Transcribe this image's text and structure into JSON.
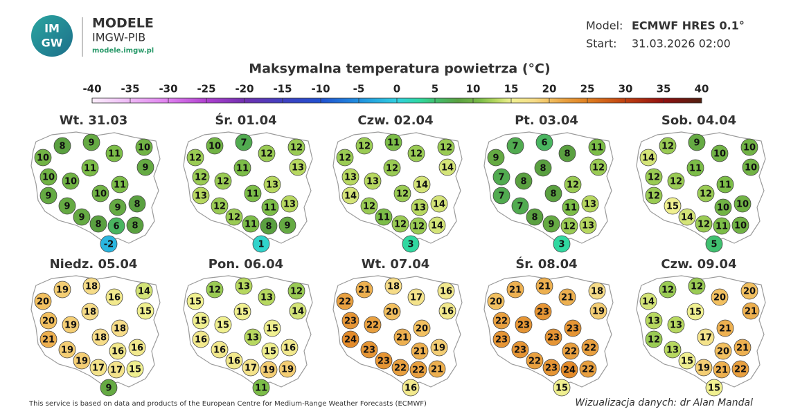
{
  "header": {
    "logo": [
      "IM",
      "GW"
    ],
    "brand": "MODELE",
    "org": "IMGW-PIB",
    "url": "modele.imgw.pl",
    "model_label": "Model:",
    "model": "ECMWF HRES 0.1°",
    "start_label": "Start:",
    "start": "31.03.2026 02:00"
  },
  "title": "Maksymalna temperatura powietrza (°C)",
  "colorbar_ticks": [
    -40,
    -35,
    -30,
    -25,
    -20,
    -15,
    -10,
    -5,
    0,
    5,
    10,
    15,
    20,
    25,
    30,
    35,
    40
  ],
  "maps": [
    {
      "label": "Wt. 31.03",
      "values": [
        8,
        9,
        10,
        11,
        10,
        11,
        9,
        10,
        10,
        11,
        10,
        9,
        9,
        8,
        9,
        9,
        8,
        6,
        8,
        -2
      ]
    },
    {
      "label": "Śr. 01.04",
      "values": [
        10,
        7,
        12,
        12,
        12,
        11,
        13,
        12,
        12,
        13,
        11,
        13,
        12,
        13,
        11,
        12,
        11,
        8,
        9,
        1
      ]
    },
    {
      "label": "Czw. 02.04",
      "values": [
        12,
        11,
        12,
        12,
        12,
        12,
        14,
        13,
        13,
        14,
        12,
        14,
        12,
        14,
        13,
        11,
        12,
        12,
        14,
        3
      ]
    },
    {
      "label": "Pt. 03.04",
      "values": [
        7,
        6,
        9,
        8,
        11,
        8,
        12,
        7,
        8,
        12,
        8,
        7,
        7,
        13,
        11,
        8,
        9,
        12,
        13,
        3
      ]
    },
    {
      "label": "Sob. 04.04",
      "values": [
        12,
        9,
        14,
        10,
        10,
        11,
        10,
        12,
        12,
        11,
        12,
        12,
        15,
        10,
        10,
        14,
        12,
        11,
        10,
        5
      ]
    },
    {
      "label": "Niedz. 05.04",
      "values": [
        19,
        18,
        20,
        16,
        14,
        18,
        15,
        20,
        19,
        18,
        18,
        21,
        19,
        16,
        16,
        19,
        17,
        17,
        15,
        9
      ]
    },
    {
      "label": "Pon. 06.04",
      "values": [
        12,
        13,
        15,
        13,
        12,
        15,
        14,
        15,
        15,
        15,
        13,
        16,
        16,
        16,
        15,
        16,
        17,
        19,
        19,
        11
      ]
    },
    {
      "label": "Wt. 07.04",
      "values": [
        21,
        18,
        22,
        17,
        16,
        20,
        16,
        23,
        22,
        20,
        21,
        24,
        23,
        19,
        21,
        23,
        22,
        22,
        21,
        16
      ]
    },
    {
      "label": "Śr. 08.04",
      "values": [
        21,
        21,
        20,
        21,
        18,
        23,
        19,
        22,
        23,
        23,
        23,
        23,
        23,
        22,
        22,
        22,
        23,
        24,
        22,
        15
      ]
    },
    {
      "label": "Czw. 09.04",
      "values": [
        12,
        12,
        14,
        20,
        20,
        15,
        21,
        13,
        13,
        21,
        17,
        12,
        13,
        21,
        20,
        15,
        19,
        21,
        22,
        15
      ]
    }
  ],
  "footer": {
    "source": "This service is based on data and products of the European Centre for Medium-Range Weather Forecasts (ECMWF)",
    "credit": "Wizualizacja danych: dr Alan Mandal"
  }
}
